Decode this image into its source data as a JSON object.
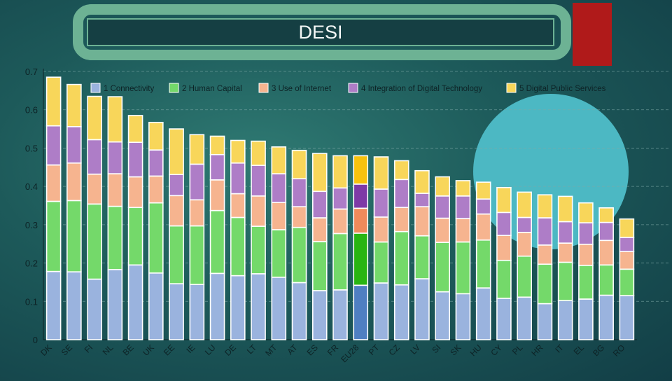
{
  "slide": {
    "title": "DESI",
    "colors": {
      "frame": "#6db294",
      "title_bg": "#153f43",
      "accent_red": "#b01a1a",
      "accent_circle": "#4cb8c3"
    }
  },
  "chart_data": {
    "type": "bar",
    "stacked": true,
    "ylim": [
      0,
      0.7
    ],
    "yticks": [
      "0",
      "0.1",
      "0.2",
      "0.3",
      "0.4",
      "0.5",
      "0.6",
      "0.7"
    ],
    "grid": true,
    "legend_position": "top",
    "categories": [
      "DK",
      "SE",
      "FI",
      "NL",
      "BE",
      "UK",
      "EE",
      "IE",
      "LU",
      "DE",
      "LT",
      "MT",
      "AT",
      "ES",
      "FR",
      "EU28",
      "PT",
      "CZ",
      "LV",
      "SI",
      "SK",
      "HU",
      "CY",
      "PL",
      "HR",
      "IT",
      "EL",
      "BG",
      "RO"
    ],
    "highlight_category": "EU28",
    "series": [
      {
        "name": "1 Connectivity",
        "color": "#9ab3de",
        "highlight_color": "#4f7fc2",
        "values": [
          0.178,
          0.177,
          0.158,
          0.183,
          0.195,
          0.174,
          0.146,
          0.144,
          0.173,
          0.167,
          0.172,
          0.163,
          0.149,
          0.128,
          0.13,
          0.142,
          0.148,
          0.143,
          0.159,
          0.125,
          0.12,
          0.135,
          0.108,
          0.111,
          0.094,
          0.102,
          0.106,
          0.116,
          0.115
        ]
      },
      {
        "name": "2 Human Capital",
        "color": "#74d96a",
        "highlight_color": "#29b512",
        "values": [
          0.183,
          0.186,
          0.196,
          0.165,
          0.15,
          0.183,
          0.151,
          0.153,
          0.164,
          0.152,
          0.124,
          0.124,
          0.144,
          0.128,
          0.147,
          0.136,
          0.107,
          0.139,
          0.112,
          0.129,
          0.135,
          0.125,
          0.099,
          0.107,
          0.103,
          0.1,
          0.088,
          0.079,
          0.069
        ]
      },
      {
        "name": "3 Use of Internet",
        "color": "#f6b48f",
        "highlight_color": "#ef8a5b",
        "values": [
          0.095,
          0.098,
          0.078,
          0.085,
          0.08,
          0.07,
          0.079,
          0.068,
          0.08,
          0.062,
          0.079,
          0.071,
          0.054,
          0.062,
          0.064,
          0.065,
          0.065,
          0.063,
          0.076,
          0.063,
          0.061,
          0.068,
          0.065,
          0.062,
          0.05,
          0.05,
          0.055,
          0.064,
          0.046
        ]
      },
      {
        "name": "4 Integration of Digital Technology",
        "color": "#ae7dc7",
        "highlight_color": "#7e3aa6",
        "values": [
          0.102,
          0.095,
          0.09,
          0.083,
          0.09,
          0.068,
          0.055,
          0.093,
          0.066,
          0.08,
          0.08,
          0.075,
          0.073,
          0.069,
          0.055,
          0.063,
          0.073,
          0.073,
          0.035,
          0.058,
          0.059,
          0.039,
          0.06,
          0.039,
          0.071,
          0.056,
          0.056,
          0.047,
          0.037
        ]
      },
      {
        "name": "5 Digital Public Services",
        "color": "#f8d65a",
        "highlight_color": "#f6c20e",
        "values": [
          0.127,
          0.11,
          0.113,
          0.118,
          0.07,
          0.072,
          0.119,
          0.077,
          0.048,
          0.059,
          0.063,
          0.07,
          0.074,
          0.099,
          0.084,
          0.074,
          0.084,
          0.049,
          0.059,
          0.05,
          0.04,
          0.044,
          0.065,
          0.066,
          0.06,
          0.066,
          0.052,
          0.038,
          0.048
        ]
      }
    ]
  }
}
